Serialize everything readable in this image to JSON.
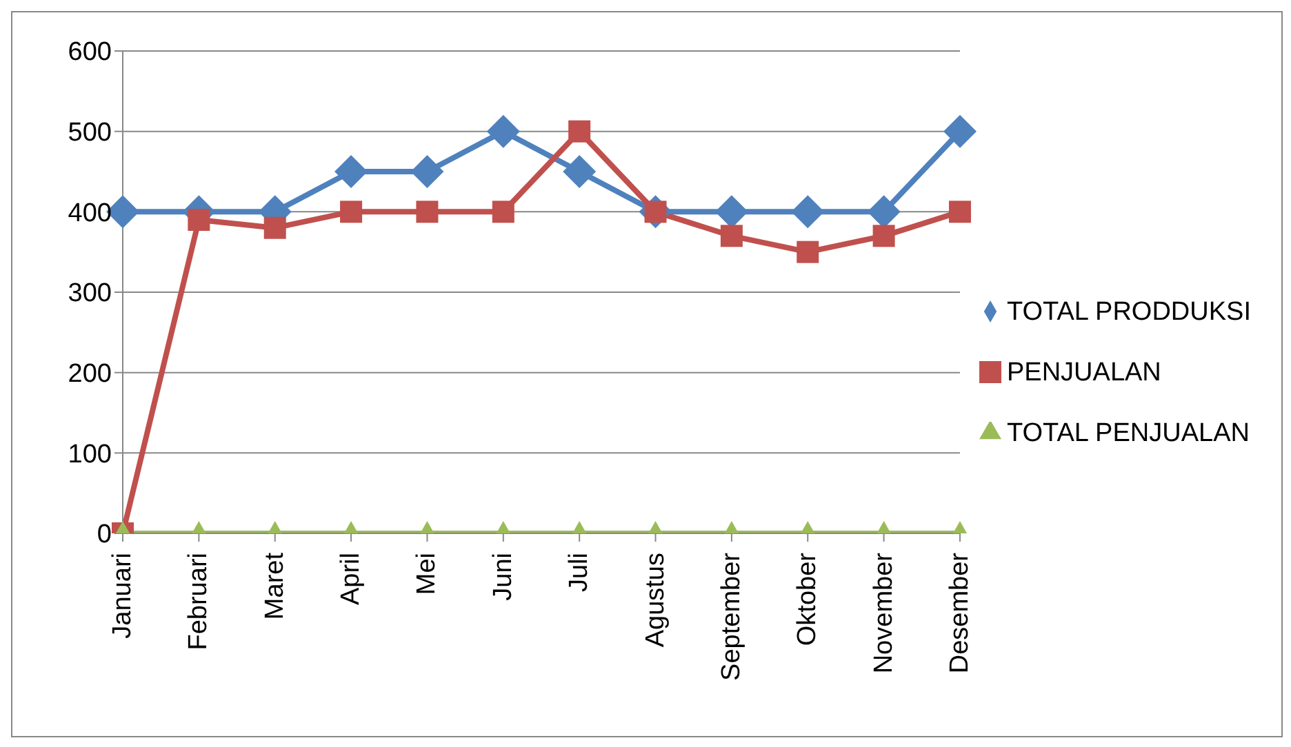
{
  "chart_data": {
    "type": "line",
    "categories": [
      "Januari",
      "Februari",
      "Maret",
      "April",
      "Mei",
      "Juni",
      "Juli",
      "Agustus",
      "September",
      "Oktober",
      "November",
      "Desember"
    ],
    "series": [
      {
        "name": "TOTAL PRODDUKSI",
        "color": "#4f81bd",
        "marker": "diamond",
        "values": [
          400,
          400,
          400,
          450,
          450,
          500,
          450,
          400,
          400,
          400,
          400,
          500
        ]
      },
      {
        "name": "PENJUALAN",
        "color": "#c0504d",
        "marker": "square",
        "values": [
          0,
          390,
          380,
          400,
          400,
          400,
          500,
          400,
          370,
          350,
          370,
          400
        ]
      },
      {
        "name": "TOTAL PENJUALAN",
        "color": "#9bbb59",
        "marker": "triangle",
        "values": [
          0,
          0,
          0,
          0,
          0,
          0,
          0,
          0,
          0,
          0,
          0,
          0
        ]
      }
    ],
    "ylim": [
      0,
      600
    ],
    "yticks": [
      0,
      100,
      200,
      300,
      400,
      500,
      600
    ],
    "grid": "y",
    "legend": "right"
  }
}
